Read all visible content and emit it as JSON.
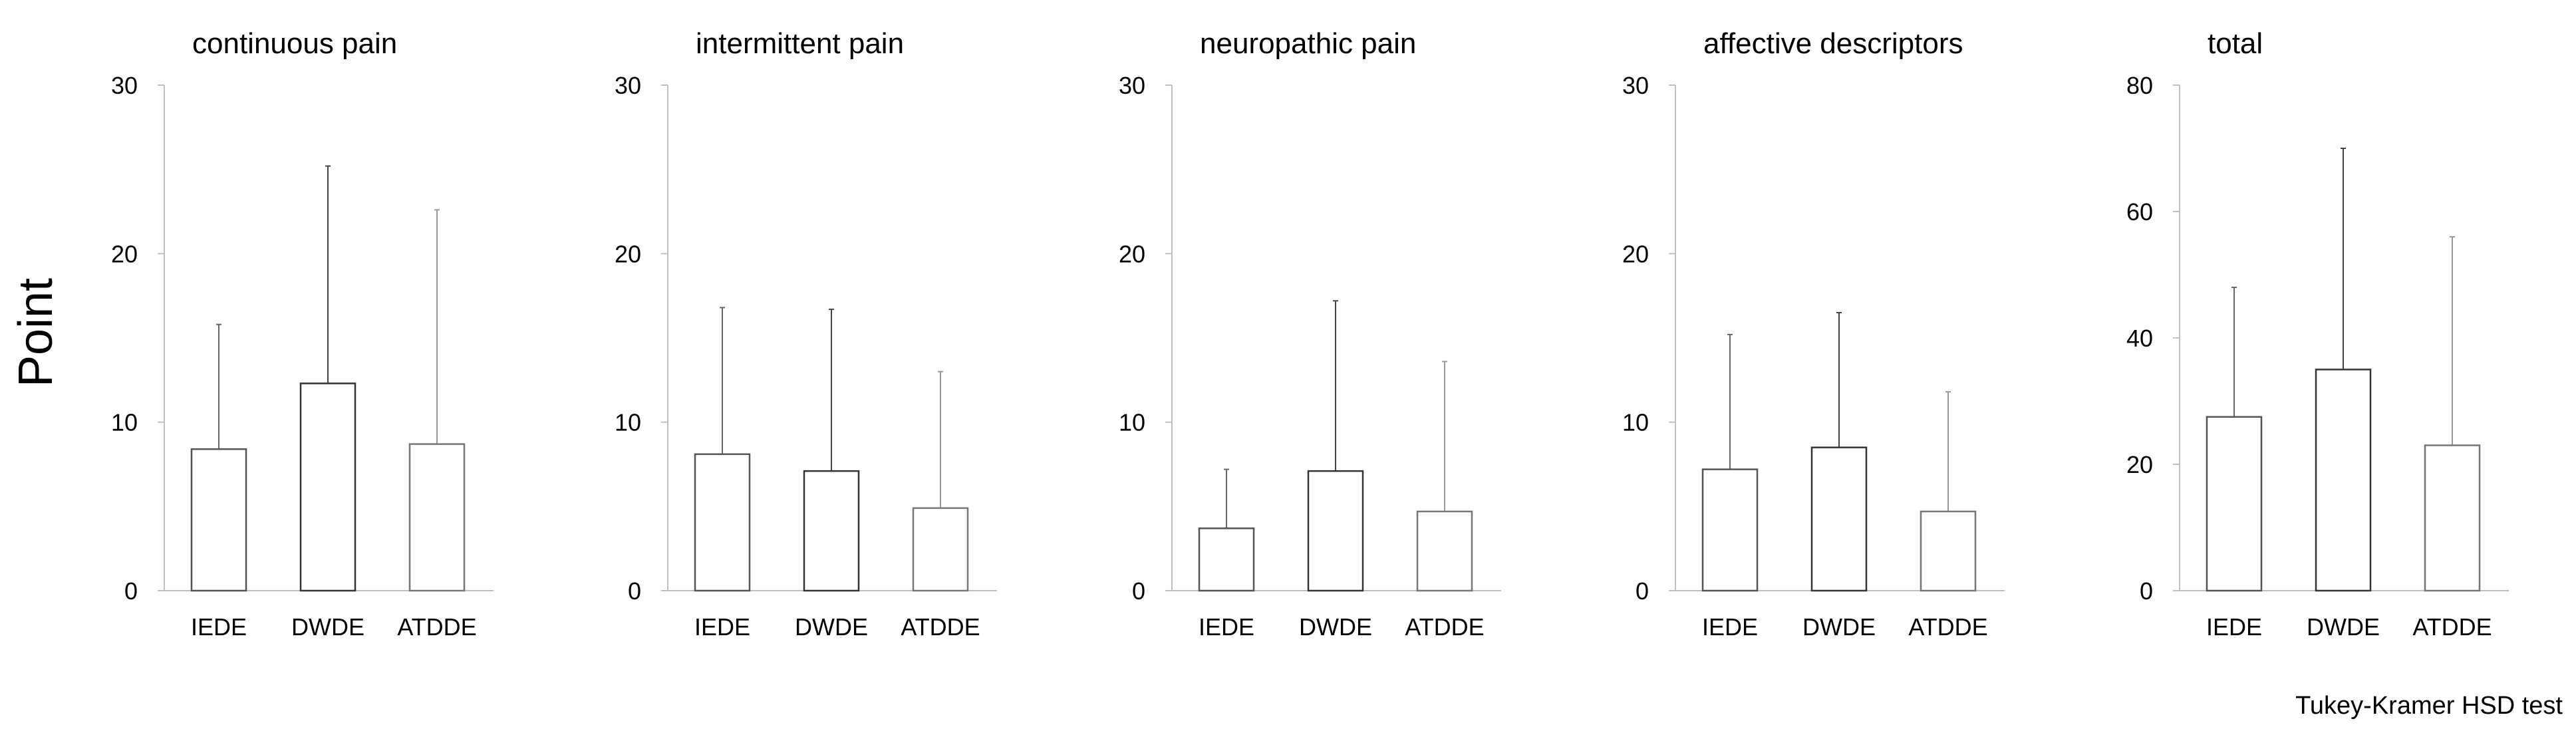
{
  "figure": {
    "ylabel": "Point",
    "footnote": "Tukey-Kramer HSD test"
  },
  "chart_data": [
    {
      "type": "bar",
      "title": "continuous pain",
      "categories": [
        "IEDE",
        "DWDE",
        "ATDDE"
      ],
      "values": [
        8.4,
        12.3,
        8.7
      ],
      "error_upper": [
        15.8,
        25.2,
        22.6
      ],
      "ylim": [
        0,
        30
      ],
      "yticks": [
        0,
        10,
        20,
        30
      ]
    },
    {
      "type": "bar",
      "title": "intermittent pain",
      "categories": [
        "IEDE",
        "DWDE",
        "ATDDE"
      ],
      "values": [
        8.1,
        7.1,
        4.9
      ],
      "error_upper": [
        16.8,
        16.7,
        13.0
      ],
      "ylim": [
        0,
        30
      ],
      "yticks": [
        0,
        10,
        20,
        30
      ]
    },
    {
      "type": "bar",
      "title": "neuropathic pain",
      "categories": [
        "IEDE",
        "DWDE",
        "ATDDE"
      ],
      "values": [
        3.7,
        7.1,
        4.7
      ],
      "error_upper": [
        7.2,
        17.2,
        13.6
      ],
      "ylim": [
        0,
        30
      ],
      "yticks": [
        0,
        10,
        20,
        30
      ]
    },
    {
      "type": "bar",
      "title": "affective descriptors",
      "categories": [
        "IEDE",
        "DWDE",
        "ATDDE"
      ],
      "values": [
        7.2,
        8.5,
        4.7
      ],
      "error_upper": [
        15.2,
        16.5,
        11.8
      ],
      "ylim": [
        0,
        30
      ],
      "yticks": [
        0,
        10,
        20,
        30
      ]
    },
    {
      "type": "bar",
      "title": "total",
      "categories": [
        "IEDE",
        "DWDE",
        "ATDDE"
      ],
      "values": [
        27.5,
        35.0,
        23.0
      ],
      "error_upper": [
        48.0,
        70.0,
        56.0
      ],
      "ylim": [
        0,
        80
      ],
      "yticks": [
        0,
        20,
        40,
        60,
        80
      ]
    }
  ]
}
